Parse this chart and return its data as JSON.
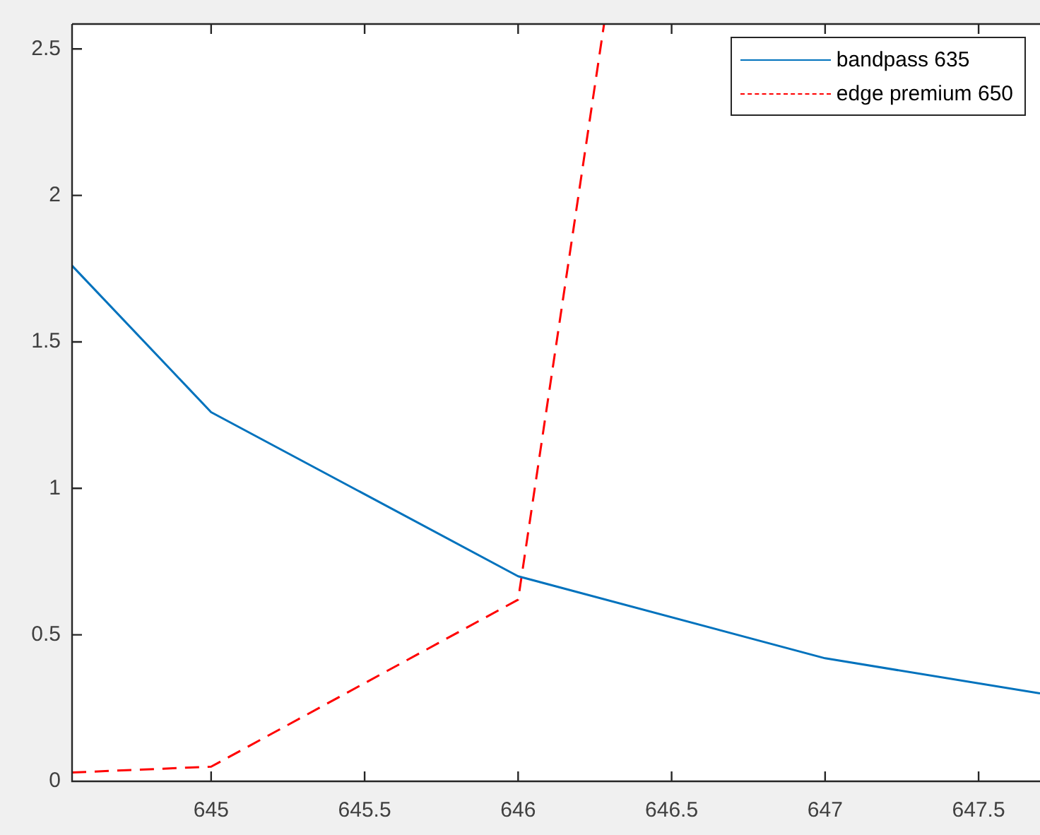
{
  "chart_data": {
    "type": "line",
    "xlim": [
      644.547,
      647.7
    ],
    "ylim": [
      0,
      2.585
    ],
    "xticks": [
      645,
      645.5,
      646,
      646.5,
      647,
      647.5
    ],
    "yticks": [
      0,
      0.5,
      1,
      1.5,
      2,
      2.5
    ],
    "legend": "top right",
    "marker": "none",
    "series": [
      {
        "name": "bandpass 635",
        "color": "#0072bd",
        "line_style": "solid",
        "x": [
          644.547,
          645,
          646,
          647,
          647.7
        ],
        "values": [
          1.76,
          1.26,
          0.7,
          0.42,
          0.3
        ]
      },
      {
        "name": "edge premium 650",
        "color": "#ff0000",
        "line_style": "dashed",
        "x": [
          644.547,
          645,
          646,
          646.28
        ],
        "values": [
          0.03,
          0.05,
          0.62,
          2.585
        ]
      }
    ]
  }
}
